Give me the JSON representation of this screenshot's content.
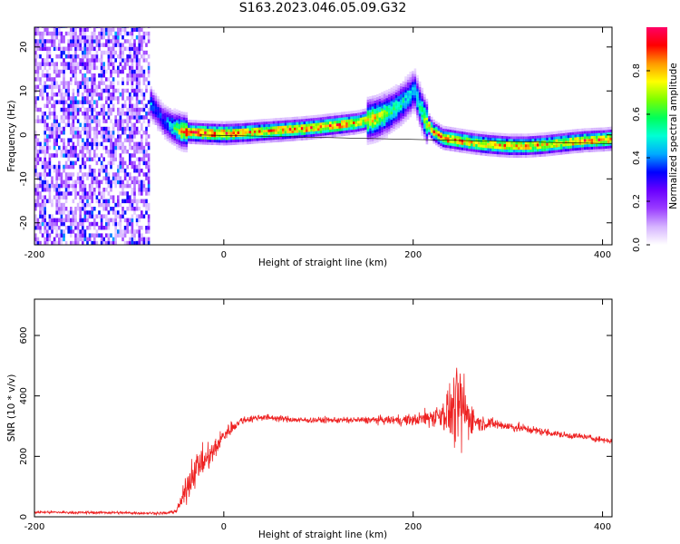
{
  "title": "S163.2023.046.05.09.G32",
  "chart_data": [
    {
      "type": "heatmap",
      "title": "S163.2023.046.05.09.G32",
      "xlabel": "Height of straight line (km)",
      "ylabel": "Frequency (Hz)",
      "xlim": [
        -200,
        410
      ],
      "ylim": [
        -25,
        24.5
      ],
      "x_ticks": [
        -200,
        0,
        200,
        400
      ],
      "y_ticks": [
        -20,
        -10,
        0,
        10,
        20
      ],
      "grid": false,
      "colorbar": {
        "label": "Normalized spectral amplitude",
        "range": [
          0,
          1
        ],
        "ticks": [
          "0.0",
          "0.2",
          "0.4",
          "0.6",
          "0.8"
        ],
        "colormap": [
          "#ffffff",
          "#d6b4ff",
          "#9a3cff",
          "#6a00ff",
          "#0000ff",
          "#00aaff",
          "#00ffd5",
          "#00ff5a",
          "#7dff00",
          "#ffff00",
          "#ff9900",
          "#ff0000",
          "#ff0066"
        ]
      },
      "noise_region_x": [
        -200,
        -78
      ],
      "ridge": {
        "x": [
          -85,
          -75,
          -65,
          -55,
          -45,
          -35,
          -25,
          -15,
          0,
          20,
          40,
          60,
          80,
          100,
          120,
          140,
          160,
          175,
          185,
          195,
          200,
          205,
          212,
          220,
          230,
          245,
          260,
          280,
          300,
          320,
          340,
          360,
          380,
          400,
          410
        ],
        "y": [
          9,
          6,
          3,
          1.5,
          0.5,
          0.3,
          0.2,
          0.1,
          0,
          0.2,
          0.5,
          0.8,
          1.1,
          1.5,
          2,
          2.5,
          3.5,
          5,
          6.5,
          8.5,
          10,
          7,
          3,
          0.5,
          -1,
          -1.5,
          -2,
          -2.5,
          -2.8,
          -2.8,
          -2.5,
          -2,
          -1.6,
          -1.4,
          -1.2
        ],
        "peak_amplitude": [
          0.5,
          0.4,
          0.35,
          0.55,
          0.85,
          0.95,
          0.95,
          0.95,
          0.95,
          0.9,
          0.85,
          0.9,
          0.9,
          0.9,
          0.9,
          0.85,
          0.8,
          0.6,
          0.55,
          0.5,
          0.45,
          0.55,
          0.75,
          0.85,
          0.9,
          0.9,
          0.85,
          0.85,
          0.85,
          0.85,
          0.85,
          0.85,
          0.9,
          0.9,
          0.9
        ]
      }
    },
    {
      "type": "line",
      "xlabel": "Height of straight line (km)",
      "ylabel": "SNR (10 * v/v)",
      "xlim": [
        -200,
        410
      ],
      "ylim": [
        0,
        720
      ],
      "x_ticks": [
        -200,
        0,
        200,
        400
      ],
      "y_ticks": [
        0,
        200,
        400,
        600
      ],
      "grid": false,
      "color": "#ff0000",
      "series": [
        {
          "x": [
            -200,
            -180,
            -160,
            -140,
            -120,
            -100,
            -80,
            -60,
            -50,
            -45,
            -40,
            -35,
            -30,
            -25,
            -20,
            -15,
            -10,
            -5,
            0,
            10,
            20,
            30,
            40,
            60,
            80,
            100,
            120,
            140,
            160,
            180,
            200,
            210,
            220,
            230,
            240,
            245,
            250,
            255,
            260,
            265,
            270,
            280,
            300,
            320,
            340,
            360,
            380,
            400,
            410
          ],
          "mean": [
            15,
            15,
            14,
            14,
            14,
            13,
            12,
            12,
            20,
            50,
            90,
            130,
            160,
            175,
            185,
            200,
            220,
            245,
            270,
            300,
            320,
            325,
            330,
            325,
            320,
            320,
            320,
            320,
            320,
            320,
            320,
            325,
            330,
            340,
            350,
            355,
            360,
            345,
            330,
            320,
            310,
            310,
            300,
            290,
            280,
            270,
            265,
            255,
            250
          ],
          "spread": [
            8,
            8,
            8,
            8,
            8,
            8,
            8,
            8,
            15,
            40,
            80,
            100,
            100,
            90,
            80,
            75,
            70,
            60,
            50,
            35,
            25,
            20,
            20,
            18,
            18,
            18,
            18,
            20,
            22,
            28,
            35,
            45,
            60,
            90,
            170,
            230,
            260,
            200,
            120,
            70,
            45,
            35,
            30,
            25,
            22,
            20,
            18,
            18,
            15
          ]
        }
      ]
    }
  ]
}
